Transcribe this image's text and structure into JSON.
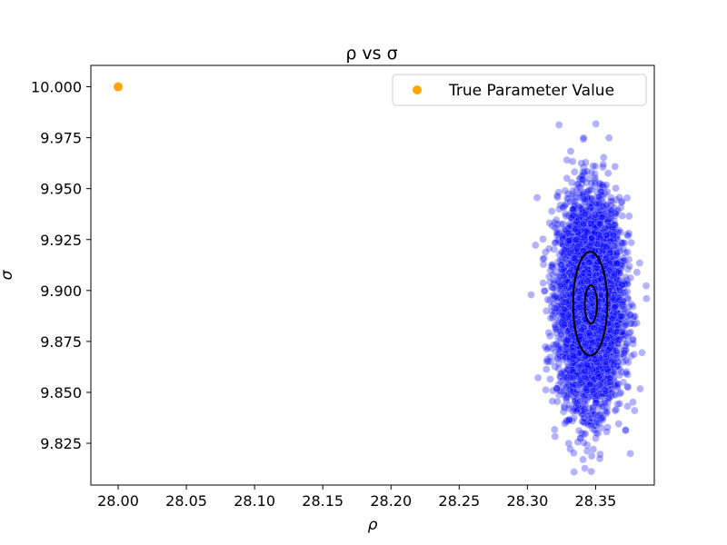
{
  "chart_data": {
    "type": "scatter",
    "title": "ρ vs σ",
    "xlabel": "ρ",
    "ylabel": "σ",
    "xlim": [
      27.98,
      28.393
    ],
    "ylim": [
      9.8045,
      10.0105
    ],
    "xticks": [
      28.0,
      28.05,
      28.1,
      28.15,
      28.2,
      28.25,
      28.3,
      28.35
    ],
    "xtick_labels": [
      "28.00",
      "28.05",
      "28.10",
      "28.15",
      "28.20",
      "28.25",
      "28.30",
      "28.35"
    ],
    "yticks": [
      9.825,
      9.85,
      9.875,
      9.9,
      9.925,
      9.95,
      9.975,
      10.0
    ],
    "ytick_labels": [
      "9.825",
      "9.850",
      "9.875",
      "9.900",
      "9.925",
      "9.950",
      "9.975",
      "10.000"
    ],
    "grid": false,
    "legend_position": "top-right",
    "legend": [
      {
        "label": "True Parameter Value",
        "color": "#ffa500"
      }
    ],
    "true_value": {
      "x": 28.0,
      "y": 10.0,
      "color": "#ffa500"
    },
    "samples": {
      "color": "#0000ff",
      "count": 5000,
      "mean_x": 28.346,
      "mean_y": 9.894,
      "std_x": 0.0115,
      "std_y": 0.0245
    },
    "contours": [
      {
        "level": "outer",
        "cx": 28.346,
        "cy": 9.8935,
        "rx": 0.0125,
        "ry": 0.0255
      },
      {
        "level": "inner",
        "cx": 28.3465,
        "cy": 9.8932,
        "rx": 0.0045,
        "ry": 0.0094
      }
    ],
    "contour_color": "#000000"
  }
}
